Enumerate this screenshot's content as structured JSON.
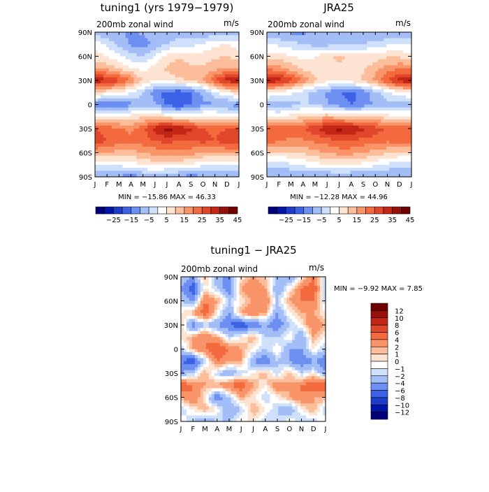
{
  "colormap": [
    "#00007a",
    "#0014a8",
    "#1e3ccc",
    "#3d62e6",
    "#6d8ff2",
    "#a3bdf7",
    "#cfe0fb",
    "#ffffff",
    "#fde3d2",
    "#fcbd9a",
    "#f99468",
    "#f26a3e",
    "#e0462a",
    "#c42616",
    "#98100a",
    "#700000"
  ],
  "chart_data": [
    {
      "id": "tuning1",
      "type": "heatmap",
      "title": "tuning1 (yrs 1979−1979)",
      "subtitle": "200mb zonal wind",
      "units": "m/s",
      "stats": "MIN = −15.86 MAX =   46.33",
      "x_ticks": [
        "J",
        "F",
        "M",
        "A",
        "M",
        "J",
        "J",
        "A",
        "S",
        "O",
        "N",
        "D",
        "J"
      ],
      "y_ticks": [
        "90N",
        "60N",
        "30N",
        "0",
        "30S",
        "60S",
        "90S"
      ],
      "xlim": [
        0,
        12
      ],
      "ylim": [
        -90,
        90
      ],
      "colorbar_orientation": "horizontal",
      "levels": [
        -30,
        -25,
        -20,
        -15,
        -10,
        -5,
        0,
        5,
        10,
        15,
        20,
        25,
        30,
        35,
        40,
        45
      ],
      "colorbar_labels": [
        "−25",
        "−15",
        "−5",
        "5",
        "15",
        "25",
        "35",
        "45"
      ],
      "months": [
        "J",
        "F",
        "M",
        "A",
        "M",
        "J",
        "J",
        "A",
        "S",
        "O",
        "N",
        "D",
        "J"
      ],
      "latitudes": [
        90,
        75,
        60,
        45,
        30,
        15,
        0,
        -15,
        -30,
        -45,
        -60,
        -75,
        -90
      ],
      "values": [
        [
          -2,
          -5,
          -4,
          -6,
          -4,
          -2,
          -2,
          -2,
          -3,
          -5,
          -4,
          -4,
          -3
        ],
        [
          8,
          4,
          -2,
          -6,
          -8,
          -3,
          0,
          2,
          3,
          6,
          9,
          10,
          8
        ],
        [
          12,
          10,
          6,
          2,
          0,
          5,
          12,
          14,
          13,
          12,
          14,
          15,
          12
        ],
        [
          20,
          18,
          14,
          10,
          8,
          12,
          16,
          18,
          16,
          16,
          18,
          20,
          20
        ],
        [
          40,
          36,
          32,
          25,
          14,
          10,
          12,
          14,
          16,
          20,
          30,
          38,
          40
        ],
        [
          14,
          12,
          10,
          6,
          0,
          -8,
          -12,
          -14,
          -10,
          -4,
          4,
          10,
          14
        ],
        [
          -8,
          -10,
          -12,
          -6,
          -2,
          -4,
          -12,
          -15,
          -10,
          -6,
          -6,
          -6,
          -8
        ],
        [
          8,
          8,
          10,
          12,
          14,
          16,
          12,
          10,
          10,
          12,
          12,
          10,
          8
        ],
        [
          30,
          28,
          26,
          24,
          28,
          38,
          42,
          40,
          36,
          30,
          28,
          30,
          30
        ],
        [
          34,
          30,
          28,
          26,
          28,
          30,
          32,
          30,
          30,
          32,
          30,
          34,
          34
        ],
        [
          20,
          20,
          18,
          18,
          20,
          22,
          24,
          24,
          22,
          20,
          20,
          20,
          20
        ],
        [
          4,
          6,
          6,
          8,
          10,
          12,
          10,
          10,
          10,
          6,
          6,
          4,
          4
        ],
        [
          -6,
          -4,
          -6,
          -8,
          -6,
          -4,
          -4,
          -6,
          -8,
          -6,
          -6,
          -4,
          -6
        ]
      ]
    },
    {
      "id": "jra25",
      "type": "heatmap",
      "title": "JRA25",
      "subtitle": "200mb zonal wind",
      "units": "m/s",
      "stats": "MIN = −12.28 MAX =   44.96",
      "x_ticks": [
        "J",
        "F",
        "M",
        "A",
        "M",
        "J",
        "J",
        "A",
        "S",
        "O",
        "N",
        "D",
        "J"
      ],
      "y_ticks": [
        "90N",
        "60N",
        "30N",
        "0",
        "30S",
        "60S",
        "90S"
      ],
      "xlim": [
        0,
        12
      ],
      "ylim": [
        -90,
        90
      ],
      "colorbar_orientation": "horizontal",
      "levels": [
        -30,
        -25,
        -20,
        -15,
        -10,
        -5,
        0,
        5,
        10,
        15,
        20,
        25,
        30,
        35,
        40,
        45
      ],
      "colorbar_labels": [
        "−25",
        "−15",
        "−5",
        "5",
        "15",
        "25",
        "35",
        "45"
      ],
      "months": [
        "J",
        "F",
        "M",
        "A",
        "M",
        "J",
        "J",
        "A",
        "S",
        "O",
        "N",
        "D",
        "J"
      ],
      "latitudes": [
        90,
        75,
        60,
        45,
        30,
        15,
        0,
        -15,
        -30,
        -45,
        -60,
        -75,
        -90
      ],
      "values": [
        [
          -6,
          -6,
          -6,
          -6,
          -4,
          -2,
          -2,
          -2,
          -4,
          -6,
          -6,
          -6,
          -6
        ],
        [
          4,
          4,
          2,
          0,
          -2,
          -2,
          -2,
          -2,
          0,
          2,
          4,
          4,
          4
        ],
        [
          12,
          12,
          10,
          8,
          10,
          14,
          16,
          14,
          12,
          12,
          14,
          14,
          12
        ],
        [
          24,
          22,
          18,
          14,
          12,
          12,
          14,
          14,
          14,
          18,
          22,
          24,
          24
        ],
        [
          40,
          38,
          32,
          24,
          16,
          12,
          10,
          12,
          16,
          22,
          30,
          38,
          40
        ],
        [
          10,
          8,
          6,
          2,
          -2,
          -6,
          -10,
          -12,
          -8,
          -2,
          4,
          8,
          10
        ],
        [
          -2,
          -4,
          -2,
          0,
          0,
          -4,
          -8,
          -10,
          -8,
          -4,
          -2,
          -2,
          -2
        ],
        [
          10,
          10,
          12,
          14,
          16,
          18,
          16,
          14,
          14,
          14,
          12,
          10,
          10
        ],
        [
          28,
          28,
          28,
          30,
          34,
          40,
          42,
          40,
          36,
          32,
          30,
          28,
          28
        ],
        [
          28,
          26,
          24,
          24,
          26,
          28,
          30,
          30,
          28,
          28,
          26,
          28,
          28
        ],
        [
          14,
          14,
          14,
          16,
          18,
          20,
          22,
          22,
          20,
          18,
          16,
          14,
          14
        ],
        [
          2,
          2,
          4,
          6,
          8,
          10,
          10,
          10,
          8,
          6,
          4,
          2,
          2
        ],
        [
          -6,
          -6,
          -6,
          -6,
          -6,
          -6,
          -6,
          -6,
          -6,
          -6,
          -6,
          -6,
          -6
        ]
      ]
    },
    {
      "id": "diff",
      "type": "heatmap",
      "title": "tuning1 − JRA25",
      "subtitle": "200mb zonal wind",
      "units": "m/s",
      "stats": "MIN =   −9.92 MAX =     7.85",
      "x_ticks": [
        "J",
        "F",
        "M",
        "A",
        "M",
        "J",
        "J",
        "A",
        "S",
        "O",
        "N",
        "D",
        "J"
      ],
      "y_ticks": [
        "90N",
        "60N",
        "30N",
        "0",
        "30S",
        "60S",
        "90S"
      ],
      "xlim": [
        0,
        12
      ],
      "ylim": [
        -90,
        90
      ],
      "colorbar_orientation": "vertical",
      "levels": [
        -14,
        -12,
        -10,
        -8,
        -6,
        -4,
        -2,
        -1,
        0,
        1,
        2,
        4,
        6,
        8,
        10,
        12
      ],
      "colorbar_labels": [
        "12",
        "10",
        "8",
        "6",
        "4",
        "2",
        "1",
        "0",
        "−1",
        "−2",
        "−4",
        "−6",
        "−8",
        "−10",
        "−12"
      ],
      "months": [
        "J",
        "F",
        "M",
        "A",
        "M",
        "J",
        "J",
        "A",
        "S",
        "O",
        "N",
        "D",
        "J"
      ],
      "latitudes": [
        90,
        75,
        60,
        45,
        30,
        15,
        0,
        -15,
        -30,
        -45,
        -60,
        -75,
        -90
      ],
      "values": [
        [
          -2,
          -4,
          2,
          -4,
          -4,
          0,
          2,
          1,
          -2,
          -4,
          0,
          4,
          -2
        ],
        [
          -4,
          -8,
          0,
          -2,
          -6,
          2,
          4,
          2,
          -4,
          0,
          4,
          6,
          -3
        ],
        [
          -2,
          -4,
          4,
          2,
          -2,
          0,
          2,
          4,
          -2,
          2,
          4,
          4,
          -2
        ],
        [
          0,
          2,
          6,
          0,
          -4,
          2,
          4,
          2,
          -4,
          0,
          2,
          2,
          0
        ],
        [
          2,
          -6,
          -2,
          -4,
          -6,
          -8,
          -6,
          -4,
          -6,
          -2,
          0,
          4,
          2
        ],
        [
          0,
          2,
          4,
          2,
          -2,
          0,
          2,
          -2,
          -2,
          0,
          -4,
          2,
          0
        ],
        [
          -2,
          2,
          4,
          6,
          4,
          2,
          0,
          -2,
          0,
          -4,
          -4,
          0,
          -2
        ],
        [
          -6,
          -8,
          -2,
          4,
          2,
          2,
          -4,
          -6,
          -2,
          -4,
          -6,
          -4,
          -6
        ],
        [
          -4,
          -2,
          2,
          -2,
          -4,
          -2,
          0,
          2,
          -2,
          2,
          -2,
          0,
          -4
        ],
        [
          6,
          4,
          2,
          2,
          4,
          6,
          2,
          0,
          4,
          2,
          4,
          6,
          6
        ],
        [
          2,
          4,
          0,
          -6,
          -2,
          2,
          0,
          -2,
          0,
          2,
          4,
          2,
          2
        ],
        [
          -2,
          0,
          2,
          0,
          -4,
          -2,
          2,
          0,
          -2,
          -4,
          0,
          2,
          -2
        ],
        [
          0,
          -2,
          -4,
          -2,
          -2,
          0,
          0,
          -2,
          -2,
          0,
          -2,
          -2,
          0
        ]
      ]
    }
  ]
}
